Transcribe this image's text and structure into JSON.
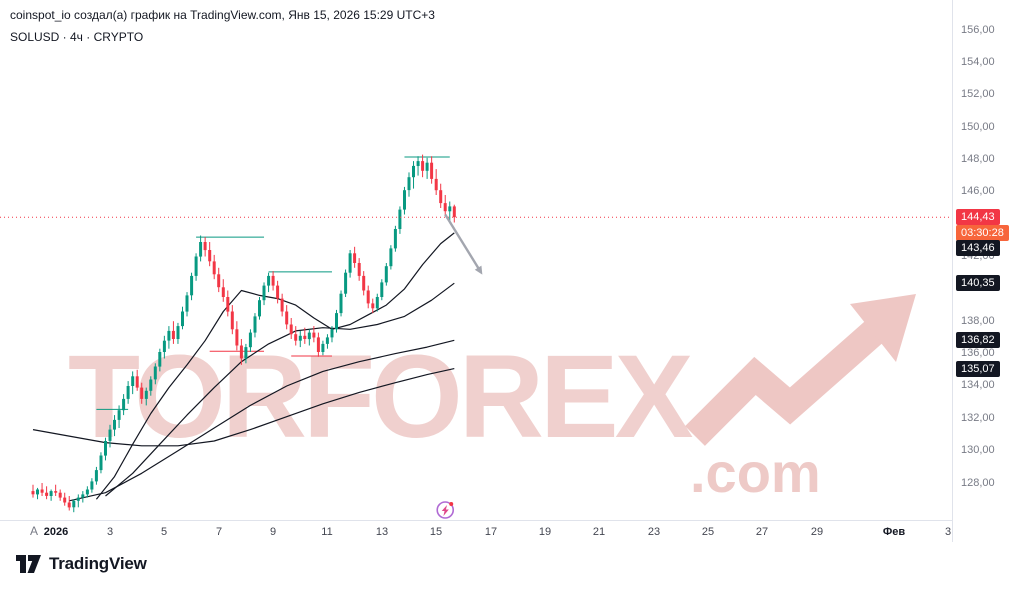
{
  "header": {
    "attribution": "coinspot_io создал(а) график на TradingView.com, Янв 15, 2026 15:29 UTC+3",
    "symbol_line": "SOLUSD · 4ч · CRYPTO"
  },
  "watermark": {
    "text": "TORFOREX",
    "suffix": ".com"
  },
  "footer": {
    "logo_text": "TradingView"
  },
  "price_axis": {
    "auto_label": "A",
    "tick_values": [
      156,
      154,
      152,
      150,
      148,
      146,
      142,
      138,
      136,
      134,
      132,
      130,
      128
    ],
    "tick_labels": [
      "156,00",
      "154,00",
      "152,00",
      "150,00",
      "148,00",
      "146,00",
      "142,00",
      "138,00",
      "136,00",
      "134,00",
      "132,00",
      "130,00",
      "128,00"
    ],
    "current_badge": {
      "label": "144,43",
      "value": 144.43,
      "countdown": "03:30:28"
    },
    "ma_badges": [
      {
        "label": "143,46",
        "value": 143.46,
        "dy": 15
      },
      {
        "label": "140,35",
        "value": 140.35,
        "dy": 0
      },
      {
        "label": "136,82",
        "value": 136.82,
        "dy": 0
      },
      {
        "label": "135,07",
        "value": 135.07,
        "dy": 0
      }
    ]
  },
  "time_axis": {
    "ticks": [
      {
        "i": 5,
        "label": "2026",
        "major": true
      },
      {
        "i": 17,
        "label": "3"
      },
      {
        "i": 29,
        "label": "5"
      },
      {
        "i": 41,
        "label": "7"
      },
      {
        "i": 53,
        "label": "9"
      },
      {
        "i": 65,
        "label": "11"
      },
      {
        "i": 77,
        "label": "13"
      },
      {
        "i": 89,
        "label": "15"
      },
      {
        "i": 101,
        "label": "17"
      },
      {
        "i": 113,
        "label": "19"
      },
      {
        "i": 125,
        "label": "21"
      },
      {
        "i": 137,
        "label": "23"
      },
      {
        "i": 149,
        "label": "25"
      },
      {
        "i": 161,
        "label": "27"
      },
      {
        "i": 173,
        "label": "29"
      },
      {
        "i": 190,
        "label": "Фев",
        "major": true
      },
      {
        "i": 202,
        "label": "3"
      }
    ]
  },
  "chart_data": {
    "type": "candlestick",
    "title": "SOLUSD 4h CRYPTO",
    "interval": "4h",
    "ylim": [
      126,
      157
    ],
    "last_price": 144.43,
    "countdown": "03:30:28",
    "colors": {
      "up": "#089981",
      "down": "#f23645",
      "ma": "#131722",
      "current_line": "#f23645",
      "arrow": "#a3a6af"
    },
    "candles": [
      [
        127.5,
        127.9,
        127.1,
        127.3
      ],
      [
        127.3,
        127.7,
        127.0,
        127.6
      ],
      [
        127.6,
        128.0,
        127.2,
        127.4
      ],
      [
        127.4,
        127.8,
        127.0,
        127.2
      ],
      [
        127.2,
        127.6,
        126.9,
        127.5
      ],
      [
        127.5,
        127.9,
        127.2,
        127.4
      ],
      [
        127.4,
        127.6,
        126.9,
        127.1
      ],
      [
        127.1,
        127.4,
        126.6,
        126.8
      ],
      [
        126.8,
        127.2,
        126.3,
        126.5
      ],
      [
        126.5,
        127.0,
        126.2,
        126.9
      ],
      [
        126.9,
        127.3,
        126.5,
        127.1
      ],
      [
        127.1,
        127.5,
        126.8,
        127.3
      ],
      [
        127.3,
        127.8,
        127.1,
        127.6
      ],
      [
        127.6,
        128.3,
        127.4,
        128.1
      ],
      [
        128.1,
        129.0,
        127.9,
        128.8
      ],
      [
        128.8,
        129.9,
        128.6,
        129.7
      ],
      [
        129.7,
        130.8,
        129.4,
        130.6
      ],
      [
        130.6,
        131.6,
        130.2,
        131.3
      ],
      [
        131.3,
        132.2,
        130.9,
        131.9
      ],
      [
        131.9,
        132.8,
        131.4,
        132.5
      ],
      [
        132.5,
        133.5,
        132.2,
        133.2
      ],
      [
        133.2,
        134.3,
        132.9,
        134.0
      ],
      [
        134.0,
        134.9,
        133.5,
        134.6
      ],
      [
        134.6,
        135.0,
        133.7,
        133.9
      ],
      [
        133.9,
        134.2,
        132.9,
        133.2
      ],
      [
        133.2,
        133.9,
        132.8,
        133.7
      ],
      [
        133.7,
        134.6,
        133.4,
        134.4
      ],
      [
        134.4,
        135.4,
        134.1,
        135.2
      ],
      [
        135.2,
        136.3,
        134.9,
        136.1
      ],
      [
        136.1,
        137.1,
        135.7,
        136.8
      ],
      [
        136.8,
        137.7,
        136.3,
        137.4
      ],
      [
        137.4,
        138.0,
        136.6,
        136.9
      ],
      [
        136.9,
        137.9,
        136.6,
        137.7
      ],
      [
        137.7,
        138.9,
        137.5,
        138.6
      ],
      [
        138.6,
        139.8,
        138.3,
        139.6
      ],
      [
        139.6,
        141.0,
        139.3,
        140.8
      ],
      [
        140.8,
        142.2,
        140.5,
        142.0
      ],
      [
        142.0,
        143.3,
        141.7,
        142.9
      ],
      [
        142.9,
        143.2,
        142.0,
        142.4
      ],
      [
        142.4,
        142.9,
        141.4,
        141.7
      ],
      [
        141.7,
        142.1,
        140.6,
        140.9
      ],
      [
        140.9,
        141.3,
        139.8,
        140.1
      ],
      [
        140.1,
        140.6,
        139.2,
        139.5
      ],
      [
        139.5,
        139.9,
        138.3,
        138.6
      ],
      [
        138.6,
        139.0,
        137.2,
        137.5
      ],
      [
        137.5,
        138.0,
        136.2,
        136.5
      ],
      [
        136.5,
        136.9,
        135.3,
        135.7
      ],
      [
        135.7,
        136.6,
        135.4,
        136.4
      ],
      [
        136.4,
        137.5,
        136.1,
        137.3
      ],
      [
        137.3,
        138.5,
        137.0,
        138.3
      ],
      [
        138.3,
        139.5,
        138.1,
        139.3
      ],
      [
        139.3,
        140.4,
        139.0,
        140.2
      ],
      [
        140.2,
        141.0,
        139.8,
        140.8
      ],
      [
        140.8,
        141.1,
        139.9,
        140.2
      ],
      [
        140.2,
        140.5,
        139.1,
        139.4
      ],
      [
        139.4,
        139.7,
        138.3,
        138.6
      ],
      [
        138.6,
        139.0,
        137.5,
        137.8
      ],
      [
        137.8,
        138.2,
        136.9,
        137.2
      ],
      [
        137.2,
        137.7,
        136.5,
        136.8
      ],
      [
        136.8,
        137.4,
        136.4,
        137.1
      ],
      [
        137.1,
        137.6,
        136.6,
        136.9
      ],
      [
        136.9,
        137.5,
        136.5,
        137.3
      ],
      [
        137.3,
        137.7,
        136.7,
        137.0
      ],
      [
        137.0,
        137.3,
        135.8,
        136.1
      ],
      [
        136.1,
        136.8,
        135.9,
        136.6
      ],
      [
        136.6,
        137.2,
        136.3,
        137.0
      ],
      [
        137.0,
        137.7,
        136.7,
        137.5
      ],
      [
        137.5,
        138.7,
        137.3,
        138.5
      ],
      [
        138.5,
        139.9,
        138.3,
        139.7
      ],
      [
        139.7,
        141.2,
        139.5,
        141.0
      ],
      [
        141.0,
        142.4,
        140.7,
        142.2
      ],
      [
        142.2,
        142.6,
        141.3,
        141.6
      ],
      [
        141.6,
        141.9,
        140.5,
        140.8
      ],
      [
        140.8,
        141.1,
        139.6,
        139.9
      ],
      [
        139.9,
        140.2,
        138.8,
        139.1
      ],
      [
        139.1,
        139.4,
        138.5,
        138.8
      ],
      [
        138.8,
        139.7,
        138.6,
        139.5
      ],
      [
        139.5,
        140.6,
        139.3,
        140.4
      ],
      [
        140.4,
        141.6,
        140.2,
        141.4
      ],
      [
        141.4,
        142.7,
        141.2,
        142.5
      ],
      [
        142.5,
        143.9,
        142.3,
        143.7
      ],
      [
        143.7,
        145.1,
        143.4,
        144.9
      ],
      [
        144.9,
        146.3,
        144.6,
        146.1
      ],
      [
        146.1,
        147.2,
        145.7,
        146.9
      ],
      [
        146.9,
        147.9,
        146.2,
        147.6
      ],
      [
        147.6,
        148.2,
        147.0,
        147.9
      ],
      [
        147.9,
        148.3,
        146.9,
        147.3
      ],
      [
        147.3,
        148.1,
        146.8,
        147.8
      ],
      [
        147.8,
        148.2,
        146.5,
        146.8
      ],
      [
        146.8,
        147.4,
        145.8,
        146.1
      ],
      [
        146.1,
        146.5,
        145.0,
        145.3
      ],
      [
        145.3,
        145.8,
        144.5,
        144.8
      ],
      [
        144.8,
        145.4,
        144.2,
        145.1
      ],
      [
        145.1,
        145.2,
        144.1,
        144.43
      ]
    ],
    "ma_lines": [
      {
        "name": "ma-1",
        "last": 143.46,
        "points": [
          [
            14,
            127.0
          ],
          [
            18,
            128.4
          ],
          [
            22,
            130.4
          ],
          [
            26,
            132.3
          ],
          [
            30,
            133.9
          ],
          [
            34,
            135.3
          ],
          [
            38,
            136.8
          ],
          [
            42,
            138.6
          ],
          [
            46,
            139.9
          ],
          [
            50,
            139.6
          ],
          [
            54,
            139.4
          ],
          [
            58,
            139.0
          ],
          [
            62,
            138.2
          ],
          [
            66,
            137.5
          ],
          [
            70,
            137.8
          ],
          [
            74,
            138.4
          ],
          [
            78,
            139.0
          ],
          [
            82,
            140.0
          ],
          [
            86,
            141.5
          ],
          [
            90,
            142.8
          ],
          [
            93,
            143.46
          ]
        ]
      },
      {
        "name": "ma-2",
        "last": 140.35,
        "points": [
          [
            16,
            127.2
          ],
          [
            22,
            128.6
          ],
          [
            28,
            130.4
          ],
          [
            34,
            132.2
          ],
          [
            40,
            133.9
          ],
          [
            46,
            135.5
          ],
          [
            52,
            136.6
          ],
          [
            58,
            137.4
          ],
          [
            64,
            137.6
          ],
          [
            70,
            137.5
          ],
          [
            76,
            137.8
          ],
          [
            82,
            138.3
          ],
          [
            88,
            139.3
          ],
          [
            93,
            140.35
          ]
        ]
      },
      {
        "name": "ma-3",
        "last": 136.82,
        "points": [
          [
            8,
            126.9
          ],
          [
            16,
            127.4
          ],
          [
            24,
            128.6
          ],
          [
            32,
            130.0
          ],
          [
            40,
            131.4
          ],
          [
            48,
            132.8
          ],
          [
            56,
            134.0
          ],
          [
            64,
            134.9
          ],
          [
            72,
            135.5
          ],
          [
            80,
            136.0
          ],
          [
            87,
            136.4
          ],
          [
            93,
            136.82
          ]
        ]
      },
      {
        "name": "ma-4",
        "last": 135.07,
        "points": [
          [
            0,
            131.3
          ],
          [
            8,
            130.9
          ],
          [
            16,
            130.5
          ],
          [
            24,
            130.3
          ],
          [
            32,
            130.3
          ],
          [
            40,
            130.6
          ],
          [
            48,
            131.3
          ],
          [
            56,
            132.1
          ],
          [
            64,
            132.9
          ],
          [
            72,
            133.6
          ],
          [
            80,
            134.2
          ],
          [
            87,
            134.7
          ],
          [
            93,
            135.07
          ]
        ]
      }
    ],
    "levels": [
      {
        "from": 14,
        "to": 21,
        "price": 132.55,
        "dir": "up"
      },
      {
        "from": 36,
        "to": 51,
        "price": 143.2,
        "dir": "up"
      },
      {
        "from": 39,
        "to": 51,
        "price": 136.15,
        "dir": "down"
      },
      {
        "from": 52,
        "to": 66,
        "price": 141.05,
        "dir": "up"
      },
      {
        "from": 57,
        "to": 66,
        "price": 135.85,
        "dir": "down"
      },
      {
        "from": 82,
        "to": 92,
        "price": 148.15,
        "dir": "up"
      }
    ],
    "trend_arrow": {
      "x1": 91,
      "p1": 144.6,
      "x2": 98.5,
      "p2": 141.2
    },
    "event_icon": {
      "i": 91,
      "name": "lightning-event"
    }
  }
}
